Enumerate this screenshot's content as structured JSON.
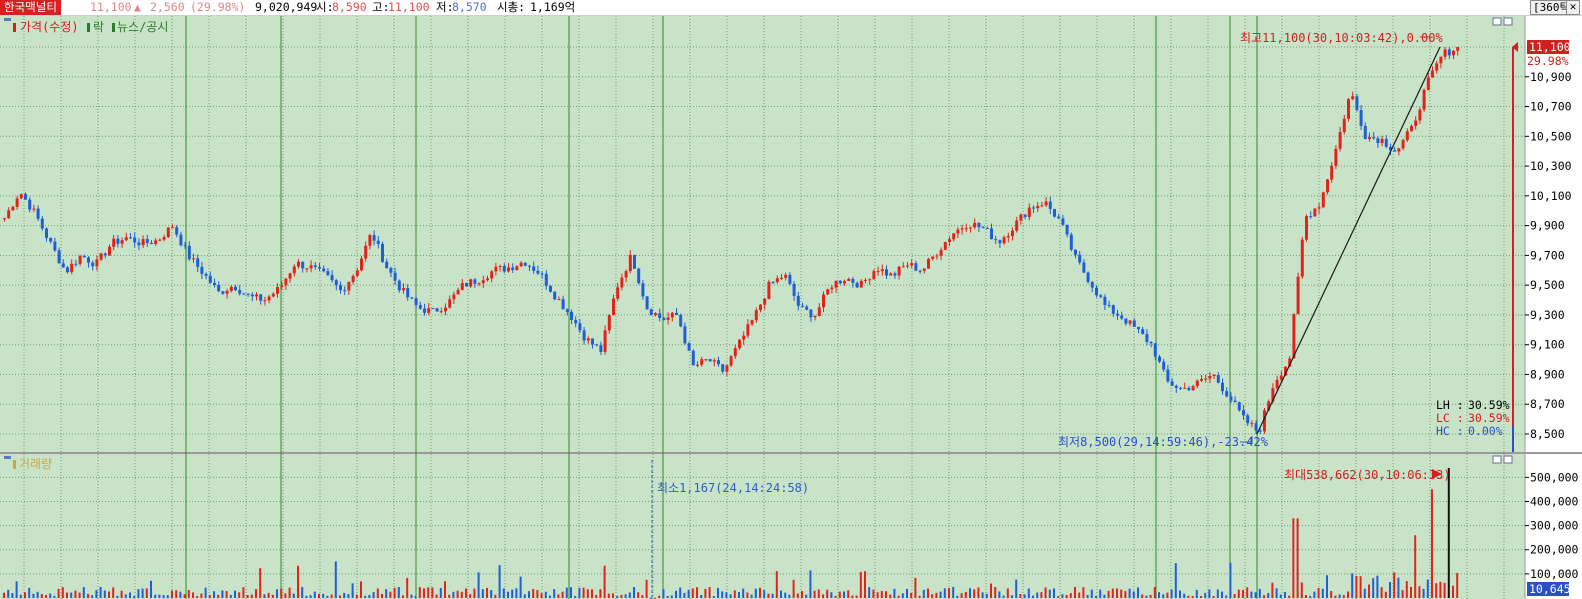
{
  "header": {
    "stock_name": "한국맥널티",
    "price": "11,100",
    "change": "2,560",
    "change_pct": "(29.98%)",
    "volume": "9,020,949",
    "open_label": "시:",
    "open": "8,590",
    "high_label": "고:",
    "high": "11,100",
    "low_label": "저:",
    "low": "8,570",
    "mcap_label": "시총:",
    "mcap": "1,169억",
    "period": "[360틱]",
    "close_symbol": "✕"
  },
  "price_panel": {
    "legend": [
      {
        "label": "가격(수정)",
        "color": "#d02020"
      },
      {
        "label": "락",
        "color": "#2a7a2a"
      },
      {
        "label": "뉴스/공시",
        "color": "#2a7a2a"
      }
    ],
    "current_price": "11,100",
    "current_pct": "29.98%",
    "high_annotation": "최고11,100(30,10:03:42),0.00%",
    "low_annotation": "최저8,500(29,14:59:46),-23.42%",
    "stats": [
      {
        "label": "LH :",
        "value": "30.59%",
        "color": "#000000"
      },
      {
        "label": "LC :",
        "value": "30.59%",
        "color": "#d02020"
      },
      {
        "label": "HC :",
        "value": "0.00%",
        "color": "#2a50c8"
      }
    ]
  },
  "volume_panel": {
    "legend": "거래량",
    "max_annotation": "최대538,662(30,10:06:33)",
    "min_annotation": "최소1,167(24,14:24:58)",
    "current_volume": "10,645"
  },
  "colors": {
    "chart_bg": "#c9e3c9",
    "up": "#e0241c",
    "down": "#1f5fd6",
    "grid": "#6e9c6e",
    "session": "#2d8a2d",
    "accent": "#d72020"
  },
  "chart_data": [
    {
      "type": "candlestick",
      "title": "가격(수정)",
      "ylim": [
        8400,
        11250
      ],
      "y_ticks": [
        8500,
        8700,
        8900,
        9100,
        9300,
        9500,
        9700,
        9900,
        10100,
        10300,
        10500,
        10700,
        10900
      ],
      "y_tick_labels": [
        "8,500",
        "8,700",
        "8,900",
        "9,100",
        "9,300",
        "9,500",
        "9,700",
        "9,900",
        "10,100",
        "10,300",
        "10,500",
        "10,700",
        "10,900"
      ],
      "close_series": [
        9950,
        10130,
        9980,
        9780,
        9590,
        9700,
        9640,
        9780,
        9820,
        9780,
        9800,
        9900,
        9700,
        9580,
        9450,
        9500,
        9420,
        9400,
        9480,
        9650,
        9620,
        9560,
        9460,
        9600,
        9850,
        9620,
        9460,
        9350,
        9320,
        9380,
        9500,
        9540,
        9600,
        9620,
        9660,
        9580,
        9430,
        9300,
        9140,
        9060,
        9480,
        9700,
        9350,
        9270,
        9300,
        8950,
        9000,
        8920,
        9100,
        9280,
        9500,
        9570,
        9340,
        9300,
        9500,
        9550,
        9500,
        9620,
        9560,
        9640,
        9600,
        9730,
        9850,
        9920,
        9880,
        9790,
        9900,
        10020,
        10060,
        9930,
        9680,
        9520,
        9350,
        9290,
        9200,
        9100,
        8850,
        8800,
        8840,
        8900,
        8760,
        8600,
        8510,
        8850,
        9000,
        9950,
        10050,
        10400,
        10800,
        10500,
        10480,
        10400,
        10550,
        10850,
        11050,
        11100
      ],
      "high_point": {
        "value": 11100
      },
      "low_point": {
        "value": 8500
      }
    },
    {
      "type": "bar",
      "title": "거래량",
      "ylim": [
        0,
        560000
      ],
      "y_ticks": [
        100000,
        200000,
        300000,
        400000,
        500000
      ],
      "y_tick_labels": [
        "100,000",
        "200,000",
        "300,000",
        "400,000",
        "500,000"
      ],
      "max_value": 538662,
      "min_value": 1167
    }
  ]
}
